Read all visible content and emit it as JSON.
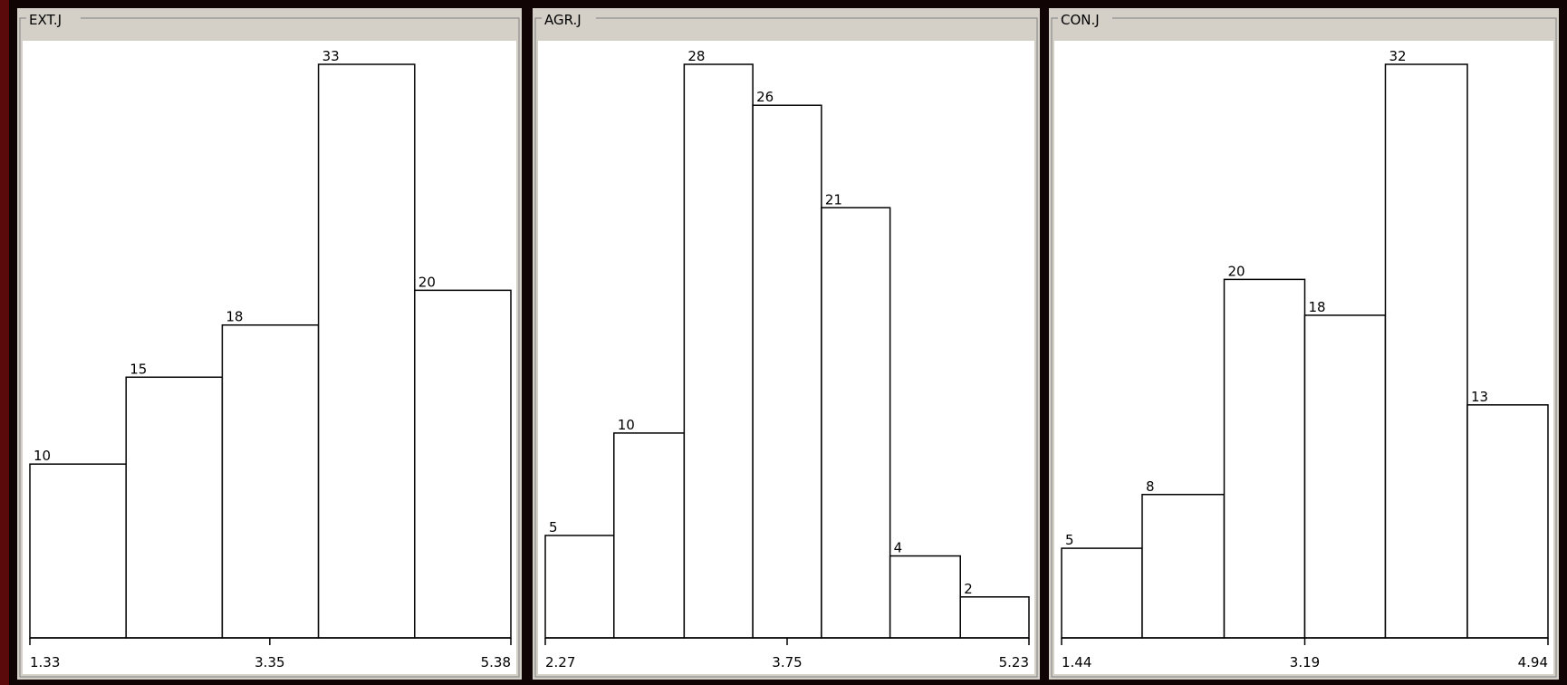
{
  "chart_data": [
    {
      "type": "histogram",
      "title": "EXT.J",
      "bins": [
        1.33,
        2.14,
        2.95,
        3.76,
        4.57,
        5.38
      ],
      "values": [
        10,
        15,
        18,
        33,
        20
      ],
      "xlim": [
        1.33,
        5.38
      ],
      "xticks": [
        1.33,
        3.35,
        5.38
      ]
    },
    {
      "type": "histogram",
      "title": "AGR.J",
      "bins": [
        2.27,
        2.69,
        3.12,
        3.54,
        3.96,
        4.38,
        4.81,
        5.23
      ],
      "values": [
        5,
        10,
        28,
        26,
        21,
        4,
        2
      ],
      "xlim": [
        2.27,
        5.23
      ],
      "xticks": [
        2.27,
        3.75,
        5.23
      ]
    },
    {
      "type": "histogram",
      "title": "CON.J",
      "bins": [
        1.44,
        2.02,
        2.61,
        3.19,
        3.77,
        4.36,
        4.94
      ],
      "values": [
        5,
        8,
        20,
        18,
        32,
        13
      ],
      "xlim": [
        1.44,
        4.94
      ],
      "xticks": [
        1.44,
        3.19,
        4.94
      ]
    }
  ]
}
